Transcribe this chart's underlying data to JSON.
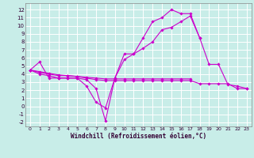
{
  "bg_color": "#c8ede8",
  "grid_color": "#aacccc",
  "line_color": "#cc00cc",
  "xlim": [
    -0.5,
    23.5
  ],
  "ylim": [
    -2.5,
    12.8
  ],
  "x_ticks": [
    0,
    1,
    2,
    3,
    4,
    5,
    6,
    7,
    8,
    9,
    10,
    11,
    12,
    13,
    14,
    15,
    16,
    17,
    18,
    19,
    20,
    21,
    22,
    23
  ],
  "y_ticks": [
    -2,
    -1,
    0,
    1,
    2,
    3,
    4,
    5,
    6,
    7,
    8,
    9,
    10,
    11,
    12
  ],
  "xlabel": "Windchill (Refroidissement éolien,°C)",
  "series": [
    {
      "x": [
        0,
        1,
        2,
        3,
        4,
        5,
        6,
        7,
        8,
        9,
        10,
        11,
        12,
        13,
        14,
        15,
        16,
        17,
        18,
        19,
        20,
        21,
        22,
        23
      ],
      "y": [
        4.5,
        5.5,
        3.5,
        3.5,
        3.5,
        3.5,
        2.5,
        0.5,
        -0.2,
        3.5,
        6.5,
        6.5,
        8.5,
        10.5,
        11.0,
        12.0,
        11.5,
        11.5,
        8.5,
        5.2,
        5.2,
        2.7,
        2.5,
        2.2
      ]
    },
    {
      "x": [
        0,
        1,
        2,
        3,
        4,
        5,
        6,
        7,
        8,
        9,
        10,
        11,
        12,
        13,
        14,
        15,
        16,
        17,
        18
      ],
      "y": [
        4.5,
        4.0,
        3.8,
        3.5,
        3.5,
        3.5,
        3.3,
        2.2,
        -1.8,
        3.5,
        5.8,
        6.5,
        7.2,
        8.0,
        9.5,
        9.8,
        10.5,
        11.2,
        8.5
      ]
    },
    {
      "x": [
        0,
        1,
        2,
        3,
        4,
        5,
        6,
        7,
        8,
        9,
        10,
        11,
        12,
        13,
        14,
        15,
        16,
        17
      ],
      "y": [
        4.5,
        4.3,
        4.1,
        3.9,
        3.8,
        3.7,
        3.6,
        3.5,
        3.4,
        3.4,
        3.4,
        3.4,
        3.4,
        3.4,
        3.4,
        3.4,
        3.4,
        3.4
      ]
    },
    {
      "x": [
        0,
        1,
        2,
        3,
        4,
        5,
        6,
        7,
        8,
        9,
        10,
        11,
        12,
        13,
        14,
        15,
        16,
        17,
        18,
        19,
        20,
        21,
        22,
        23
      ],
      "y": [
        4.5,
        4.2,
        4.0,
        3.8,
        3.8,
        3.7,
        3.5,
        3.3,
        3.2,
        3.2,
        3.2,
        3.2,
        3.2,
        3.2,
        3.2,
        3.2,
        3.2,
        3.2,
        2.8,
        2.8,
        2.8,
        2.8,
        2.2,
        2.2
      ]
    }
  ]
}
